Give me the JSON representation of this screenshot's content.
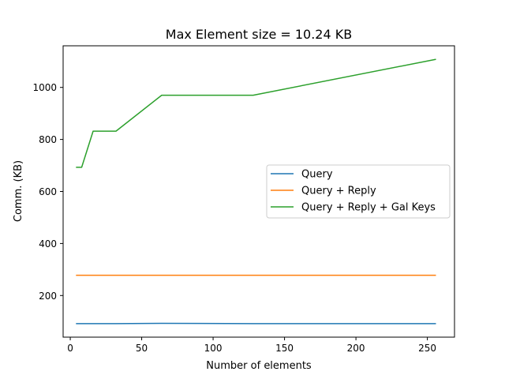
{
  "chart_data": {
    "type": "line",
    "title": "Max Element size = 10.24 KB",
    "xlabel": "Number of elements",
    "ylabel": "Comm. (KB)",
    "xlim": [
      -5,
      269
    ],
    "ylim": [
      40,
      1160
    ],
    "xticks": [
      0,
      50,
      100,
      150,
      200,
      250
    ],
    "yticks": [
      200,
      400,
      600,
      800,
      1000
    ],
    "xtick_labels": [
      "0",
      "50",
      "100",
      "150",
      "200",
      "250"
    ],
    "ytick_labels": [
      "200",
      "400",
      "600",
      "800",
      "1000"
    ],
    "grid": false,
    "legend_position": "center-right",
    "x": [
      4,
      8,
      16,
      32,
      64,
      128,
      256
    ],
    "series": [
      {
        "name": "Query",
        "color": "#1f77b4",
        "values": [
          92,
          92,
          92,
          92,
          93,
          92,
          92
        ]
      },
      {
        "name": "Query + Reply",
        "color": "#ff7f0e",
        "values": [
          278,
          278,
          278,
          278,
          278,
          278,
          278
        ]
      },
      {
        "name": "Query + Reply + Gal Keys",
        "color": "#2ca02c",
        "values": [
          693,
          693,
          832,
          832,
          970,
          970,
          1108
        ]
      }
    ]
  }
}
